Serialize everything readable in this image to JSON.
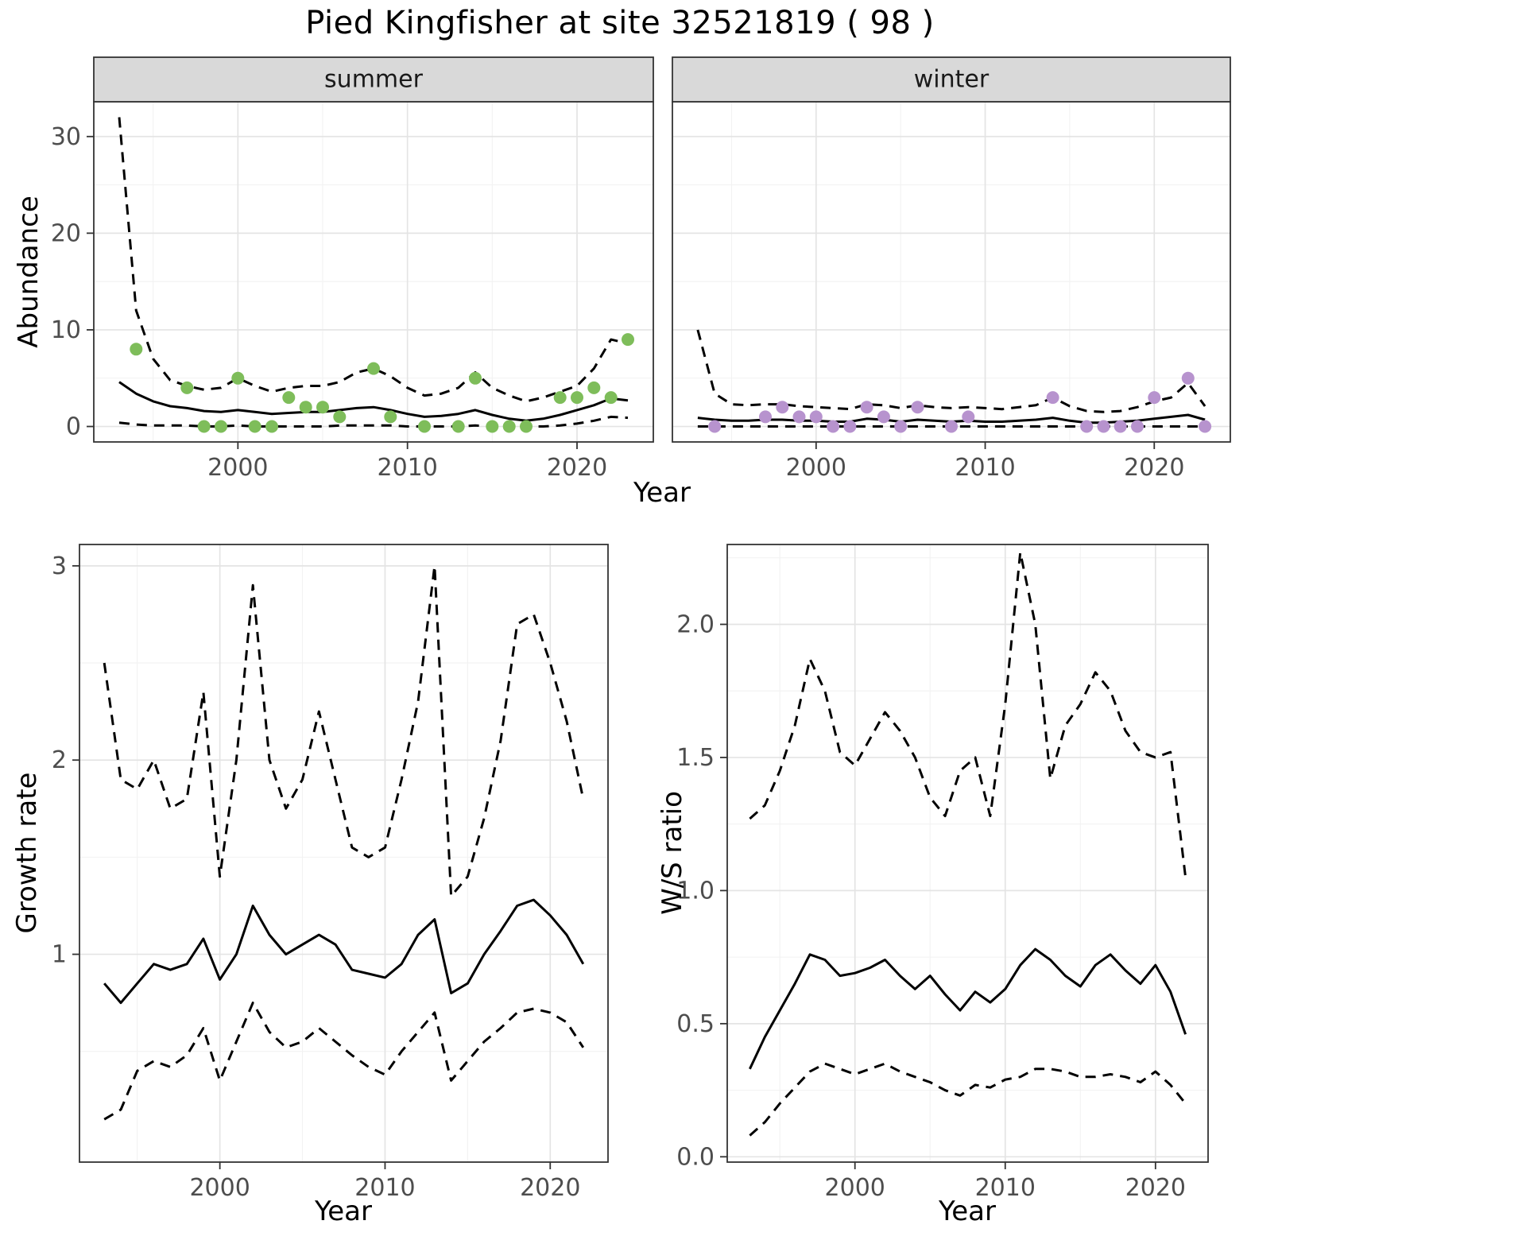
{
  "title": "Pied Kingfisher at site 32521819 ( 98 )",
  "chart_data": [
    {
      "id": "abundance-summer",
      "type": "line",
      "facet_label": "summer",
      "xlabel": "Year",
      "ylabel": "Abundance",
      "xlim": [
        1991.5,
        2024.5
      ],
      "ylim": [
        -1.6,
        33.6
      ],
      "x_ticks": [
        2000,
        2010,
        2020
      ],
      "x_tick_labels": [
        "2000",
        "2010",
        "2020"
      ],
      "x_minor": [
        1995,
        2005,
        2015
      ],
      "y_ticks": [
        0,
        10,
        20,
        30
      ],
      "y_tick_labels": [
        "0",
        "10",
        "20",
        "30"
      ],
      "y_minor": [
        5,
        15,
        25
      ],
      "grid": true,
      "legend": "none",
      "line_color": "#000000",
      "point_color": "#7ebd5a",
      "series": [
        {
          "name": "upper-ci",
          "style": "dashed",
          "x": [
            1993,
            1994,
            1995,
            1996,
            1997,
            1998,
            1999,
            2000,
            2001,
            2002,
            2003,
            2004,
            2005,
            2006,
            2007,
            2008,
            2009,
            2010,
            2011,
            2012,
            2013,
            2014,
            2015,
            2016,
            2017,
            2018,
            2019,
            2020,
            2021,
            2022,
            2023
          ],
          "y": [
            32,
            12,
            7,
            4.8,
            4.2,
            3.8,
            4,
            5,
            4.2,
            3.6,
            4,
            4.2,
            4.2,
            4.6,
            5.6,
            6,
            5.2,
            4,
            3.2,
            3.4,
            4,
            5.6,
            4,
            3.2,
            2.6,
            3,
            3.6,
            4.2,
            6,
            9,
            8.6
          ]
        },
        {
          "name": "estimate",
          "style": "solid",
          "x": [
            1993,
            1994,
            1995,
            1996,
            1997,
            1998,
            1999,
            2000,
            2001,
            2002,
            2003,
            2004,
            2005,
            2006,
            2007,
            2008,
            2009,
            2010,
            2011,
            2012,
            2013,
            2014,
            2015,
            2016,
            2017,
            2018,
            2019,
            2020,
            2021,
            2022,
            2023
          ],
          "y": [
            4.6,
            3.4,
            2.6,
            2.1,
            1.9,
            1.6,
            1.5,
            1.7,
            1.5,
            1.3,
            1.4,
            1.5,
            1.5,
            1.7,
            1.9,
            2.0,
            1.7,
            1.3,
            1.0,
            1.1,
            1.3,
            1.7,
            1.2,
            0.8,
            0.6,
            0.8,
            1.2,
            1.7,
            2.2,
            2.9,
            2.7
          ]
        },
        {
          "name": "lower-ci",
          "style": "dashed",
          "x": [
            1993,
            1994,
            1995,
            1996,
            1997,
            1998,
            1999,
            2000,
            2001,
            2002,
            2003,
            2004,
            2005,
            2006,
            2007,
            2008,
            2009,
            2010,
            2011,
            2012,
            2013,
            2014,
            2015,
            2016,
            2017,
            2018,
            2019,
            2020,
            2021,
            2022,
            2023
          ],
          "y": [
            0.4,
            0.2,
            0.1,
            0.1,
            0.1,
            0,
            0,
            0.1,
            0,
            0,
            0,
            0,
            0,
            0.1,
            0.1,
            0.1,
            0.1,
            0,
            0,
            0,
            0,
            0.1,
            0,
            0,
            0,
            0,
            0.1,
            0.3,
            0.6,
            1.0,
            0.9
          ]
        }
      ],
      "points": {
        "x": [
          1994,
          1997,
          1998,
          1999,
          2000,
          2001,
          2002,
          2003,
          2004,
          2005,
          2006,
          2008,
          2009,
          2011,
          2013,
          2014,
          2015,
          2016,
          2017,
          2019,
          2020,
          2021,
          2022,
          2023
        ],
        "y": [
          8,
          4,
          0,
          0,
          5,
          0,
          0,
          3,
          2,
          2,
          1,
          6,
          1,
          0,
          0,
          5,
          0,
          0,
          0,
          3,
          3,
          4,
          3,
          9
        ]
      }
    },
    {
      "id": "abundance-winter",
      "type": "line",
      "facet_label": "winter",
      "xlabel": "Year",
      "ylabel": "Abundance",
      "xlim": [
        1991.5,
        2024.5
      ],
      "ylim": [
        -1.6,
        33.6
      ],
      "x_ticks": [
        2000,
        2010,
        2020
      ],
      "x_tick_labels": [
        "2000",
        "2010",
        "2020"
      ],
      "x_minor": [
        1995,
        2005,
        2015
      ],
      "y_ticks": [
        0,
        10,
        20,
        30
      ],
      "y_tick_labels": [
        "0",
        "10",
        "20",
        "30"
      ],
      "y_minor": [
        5,
        15,
        25
      ],
      "grid": true,
      "legend": "none",
      "line_color": "#000000",
      "point_color": "#b793ce",
      "series": [
        {
          "name": "upper-ci",
          "style": "dashed",
          "x": [
            1993,
            1994,
            1995,
            1996,
            1997,
            1998,
            1999,
            2000,
            2001,
            2002,
            2003,
            2004,
            2005,
            2006,
            2007,
            2008,
            2009,
            2010,
            2011,
            2012,
            2013,
            2014,
            2015,
            2016,
            2017,
            2018,
            2019,
            2020,
            2021,
            2022,
            2023
          ],
          "y": [
            10,
            3.4,
            2.3,
            2.2,
            2.3,
            2.3,
            2.1,
            2.0,
            1.9,
            1.8,
            2.3,
            2.2,
            1.9,
            2.2,
            2.0,
            1.9,
            2.0,
            1.9,
            1.8,
            2.0,
            2.2,
            3.0,
            2.1,
            1.6,
            1.5,
            1.6,
            2.0,
            2.6,
            3.0,
            4.5,
            2.1
          ]
        },
        {
          "name": "estimate",
          "style": "solid",
          "x": [
            1993,
            1994,
            1995,
            1996,
            1997,
            1998,
            1999,
            2000,
            2001,
            2002,
            2003,
            2004,
            2005,
            2006,
            2007,
            2008,
            2009,
            2010,
            2011,
            2012,
            2013,
            2014,
            2015,
            2016,
            2017,
            2018,
            2019,
            2020,
            2021,
            2022,
            2023
          ],
          "y": [
            0.9,
            0.7,
            0.6,
            0.6,
            0.7,
            0.7,
            0.6,
            0.6,
            0.5,
            0.5,
            0.8,
            0.7,
            0.5,
            0.7,
            0.6,
            0.5,
            0.6,
            0.5,
            0.5,
            0.6,
            0.7,
            0.9,
            0.6,
            0.4,
            0.4,
            0.5,
            0.6,
            0.8,
            1.0,
            1.2,
            0.7
          ]
        },
        {
          "name": "lower-ci",
          "style": "dashed",
          "x": [
            1993,
            1994,
            1995,
            1996,
            1997,
            1998,
            1999,
            2000,
            2001,
            2002,
            2003,
            2004,
            2005,
            2006,
            2007,
            2008,
            2009,
            2010,
            2011,
            2012,
            2013,
            2014,
            2015,
            2016,
            2017,
            2018,
            2019,
            2020,
            2021,
            2022,
            2023
          ],
          "y": [
            0,
            0,
            0,
            0,
            0,
            0,
            0,
            0,
            0,
            0,
            0,
            0,
            0,
            0,
            0,
            0,
            0,
            0,
            0,
            0,
            0,
            0,
            0,
            0,
            0,
            0,
            0,
            0,
            0,
            0,
            0
          ]
        }
      ],
      "points": {
        "x": [
          1994,
          1997,
          1998,
          1999,
          2000,
          2001,
          2002,
          2003,
          2004,
          2005,
          2006,
          2008,
          2009,
          2014,
          2016,
          2017,
          2018,
          2019,
          2020,
          2022,
          2023
        ],
        "y": [
          0,
          1,
          2,
          1,
          1,
          0,
          0,
          2,
          1,
          0,
          2,
          0,
          1,
          3,
          0,
          0,
          0,
          0,
          3,
          5,
          0
        ]
      }
    },
    {
      "id": "growth-rate",
      "type": "line",
      "facet_label": "",
      "xlabel": "Year",
      "ylabel": "Growth rate",
      "xlim": [
        1991.5,
        2023.5
      ],
      "ylim": [
        -0.07,
        3.11
      ],
      "x_ticks": [
        2000,
        2010,
        2020
      ],
      "x_tick_labels": [
        "2000",
        "2010",
        "2020"
      ],
      "x_minor": [
        1995,
        2005,
        2015
      ],
      "y_ticks": [
        1,
        2,
        3
      ],
      "y_tick_labels": [
        "1",
        "2",
        "3"
      ],
      "y_minor": [
        0.5,
        1.5,
        2.5
      ],
      "grid": true,
      "legend": "none",
      "line_color": "#000000",
      "series": [
        {
          "name": "upper-ci",
          "style": "dashed",
          "x": [
            1993,
            1994,
            1995,
            1996,
            1997,
            1998,
            1999,
            2000,
            2001,
            2002,
            2003,
            2004,
            2005,
            2006,
            2007,
            2008,
            2009,
            2010,
            2011,
            2012,
            2013,
            2014,
            2015,
            2016,
            2017,
            2018,
            2019,
            2020,
            2021,
            2022
          ],
          "y": [
            2.5,
            1.9,
            1.85,
            2.0,
            1.75,
            1.8,
            2.35,
            1.4,
            2.0,
            2.9,
            2.0,
            1.75,
            1.9,
            2.25,
            1.9,
            1.55,
            1.5,
            1.55,
            1.9,
            2.3,
            3.0,
            1.3,
            1.4,
            1.7,
            2.1,
            2.7,
            2.75,
            2.5,
            2.2,
            1.8
          ]
        },
        {
          "name": "estimate",
          "style": "solid",
          "x": [
            1993,
            1994,
            1995,
            1996,
            1997,
            1998,
            1999,
            2000,
            2001,
            2002,
            2003,
            2004,
            2005,
            2006,
            2007,
            2008,
            2009,
            2010,
            2011,
            2012,
            2013,
            2014,
            2015,
            2016,
            2017,
            2018,
            2019,
            2020,
            2021,
            2022
          ],
          "y": [
            0.85,
            0.75,
            0.85,
            0.95,
            0.92,
            0.95,
            1.08,
            0.87,
            1.0,
            1.25,
            1.1,
            1.0,
            1.05,
            1.1,
            1.05,
            0.92,
            0.9,
            0.88,
            0.95,
            1.1,
            1.18,
            0.8,
            0.85,
            1.0,
            1.12,
            1.25,
            1.28,
            1.2,
            1.1,
            0.95
          ]
        },
        {
          "name": "lower-ci",
          "style": "dashed",
          "x": [
            1993,
            1994,
            1995,
            1996,
            1997,
            1998,
            1999,
            2000,
            2001,
            2002,
            2003,
            2004,
            2005,
            2006,
            2007,
            2008,
            2009,
            2010,
            2011,
            2012,
            2013,
            2014,
            2015,
            2016,
            2017,
            2018,
            2019,
            2020,
            2021,
            2022
          ],
          "y": [
            0.15,
            0.2,
            0.4,
            0.45,
            0.42,
            0.48,
            0.62,
            0.35,
            0.55,
            0.75,
            0.6,
            0.52,
            0.55,
            0.62,
            0.55,
            0.48,
            0.42,
            0.38,
            0.5,
            0.6,
            0.7,
            0.35,
            0.45,
            0.55,
            0.62,
            0.7,
            0.72,
            0.7,
            0.65,
            0.52
          ]
        }
      ]
    },
    {
      "id": "ws-ratio",
      "type": "line",
      "facet_label": "",
      "xlabel": "Year",
      "ylabel": "W/S ratio",
      "xlim": [
        1991.5,
        2023.5
      ],
      "ylim": [
        -0.02,
        2.3
      ],
      "x_ticks": [
        2000,
        2010,
        2020
      ],
      "x_tick_labels": [
        "2000",
        "2010",
        "2020"
      ],
      "x_minor": [
        1995,
        2005,
        2015
      ],
      "y_ticks": [
        0.0,
        0.5,
        1.0,
        1.5,
        2.0
      ],
      "y_tick_labels": [
        "0.0",
        "0.5",
        "1.0",
        "1.5",
        "2.0"
      ],
      "y_minor": [
        0.25,
        0.75,
        1.25,
        1.75,
        2.25
      ],
      "grid": true,
      "legend": "none",
      "line_color": "#000000",
      "series": [
        {
          "name": "upper-ci",
          "style": "dashed",
          "x": [
            1993,
            1994,
            1995,
            1996,
            1997,
            1998,
            1999,
            2000,
            2001,
            2002,
            2003,
            2004,
            2005,
            2006,
            2007,
            2008,
            2009,
            2010,
            2011,
            2012,
            2013,
            2014,
            2015,
            2016,
            2017,
            2018,
            2019,
            2020,
            2021,
            2022
          ],
          "y": [
            1.27,
            1.32,
            1.45,
            1.62,
            1.87,
            1.75,
            1.52,
            1.47,
            1.57,
            1.67,
            1.6,
            1.5,
            1.35,
            1.28,
            1.45,
            1.5,
            1.28,
            1.7,
            2.27,
            2.0,
            1.42,
            1.62,
            1.7,
            1.82,
            1.75,
            1.6,
            1.52,
            1.5,
            1.52,
            1.05
          ]
        },
        {
          "name": "estimate",
          "style": "solid",
          "x": [
            1993,
            1994,
            1995,
            1996,
            1997,
            1998,
            1999,
            2000,
            2001,
            2002,
            2003,
            2004,
            2005,
            2006,
            2007,
            2008,
            2009,
            2010,
            2011,
            2012,
            2013,
            2014,
            2015,
            2016,
            2017,
            2018,
            2019,
            2020,
            2021,
            2022
          ],
          "y": [
            0.33,
            0.45,
            0.55,
            0.65,
            0.76,
            0.74,
            0.68,
            0.69,
            0.71,
            0.74,
            0.68,
            0.63,
            0.68,
            0.61,
            0.55,
            0.62,
            0.58,
            0.63,
            0.72,
            0.78,
            0.74,
            0.68,
            0.64,
            0.72,
            0.76,
            0.7,
            0.65,
            0.72,
            0.62,
            0.46
          ]
        },
        {
          "name": "lower-ci",
          "style": "dashed",
          "x": [
            1993,
            1994,
            1995,
            1996,
            1997,
            1998,
            1999,
            2000,
            2001,
            2002,
            2003,
            2004,
            2005,
            2006,
            2007,
            2008,
            2009,
            2010,
            2011,
            2012,
            2013,
            2014,
            2015,
            2016,
            2017,
            2018,
            2019,
            2020,
            2021,
            2022
          ],
          "y": [
            0.08,
            0.13,
            0.2,
            0.26,
            0.32,
            0.35,
            0.33,
            0.31,
            0.33,
            0.35,
            0.32,
            0.3,
            0.28,
            0.25,
            0.23,
            0.27,
            0.26,
            0.29,
            0.3,
            0.33,
            0.33,
            0.32,
            0.3,
            0.3,
            0.31,
            0.3,
            0.28,
            0.32,
            0.27,
            0.2
          ]
        }
      ]
    }
  ],
  "style": {
    "panel_background": "#ffffff",
    "panel_border": "#333333",
    "grid_major": "#e4e4e4",
    "grid_minor": "#f2f2f2",
    "strip_background": "#d9d9d9",
    "tick_label_color": "#4d4d4d",
    "text_color": "#000000"
  }
}
